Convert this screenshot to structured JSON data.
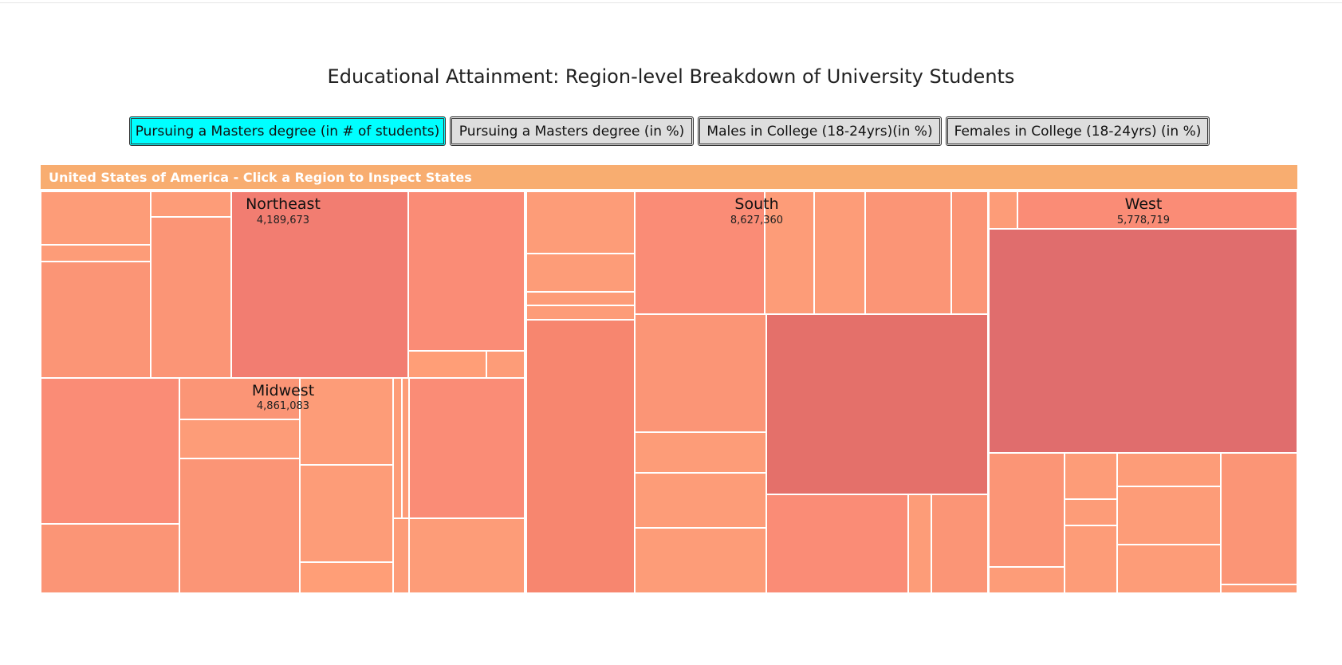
{
  "page": {
    "title": "Educational Attainment: Region-level Breakdown of University Students"
  },
  "buttons": [
    {
      "label": "Pursuing a Masters degree (in # of students)",
      "active": true
    },
    {
      "label": "Pursuing a Masters degree (in %)",
      "active": false
    },
    {
      "label": "Males in College (18-24yrs)(in %)",
      "active": false
    },
    {
      "label": "Females in College (18-24yrs) (in %)",
      "active": false
    }
  ],
  "breadcrumb": "United States of America - Click a Region to Inspect States",
  "colors": {
    "header": "#f8ad70",
    "active_button": "#00ffff",
    "low": "#ff9e77",
    "high": "#e06d6d"
  },
  "chart_data": {
    "type": "treemap",
    "title": "Educational Attainment: Region-level Breakdown of University Students",
    "regions": [
      {
        "name": "Northeast",
        "value": 4189673,
        "label": "4,189,673"
      },
      {
        "name": "Midwest",
        "value": 4861083,
        "label": "4,861,083"
      },
      {
        "name": "South",
        "value": 8627360,
        "label": "8,627,360"
      },
      {
        "name": "West",
        "value": 5778719,
        "label": "5,778,719"
      }
    ]
  }
}
